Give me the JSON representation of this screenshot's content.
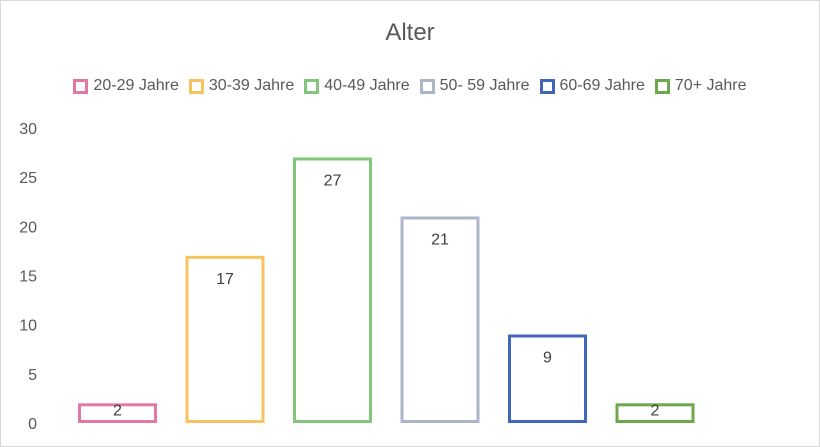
{
  "chart_data": {
    "type": "bar",
    "title": "Alter",
    "categories": [
      "20-29 Jahre",
      "30-39 Jahre",
      "40-49 Jahre",
      "50- 59 Jahre",
      "60-69 Jahre",
      "70+ Jahre"
    ],
    "values": [
      2,
      17,
      27,
      21,
      9,
      2
    ],
    "colors": [
      "#e377a8",
      "#f5c35f",
      "#82c67a",
      "#adb6c8",
      "#3f66b8",
      "#6fa84a"
    ],
    "data_labels": [
      "2",
      "17",
      "27",
      "21",
      "9",
      "2"
    ],
    "y_ticks": [
      "0",
      "5",
      "10",
      "15",
      "20",
      "25",
      "30"
    ],
    "ylim": [
      0,
      30
    ],
    "legend_position": "top",
    "grid": false,
    "bar_style": "outline"
  }
}
